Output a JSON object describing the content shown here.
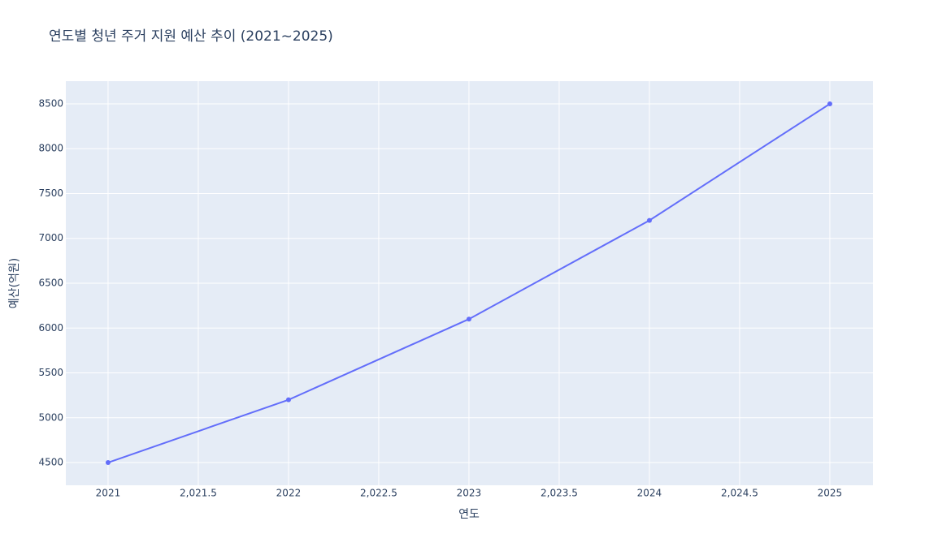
{
  "chart_data": {
    "type": "line",
    "title": "연도별 청년 주거 지원 예산 추이 (2021~2025)",
    "x_label": "연도",
    "y_label": "예산(억원)",
    "x": [
      2021,
      2022,
      2023,
      2024,
      2025
    ],
    "series": [
      {
        "name": "예산",
        "color": "#636efa",
        "values": [
          4500,
          5200,
          6100,
          7200,
          8500
        ]
      }
    ],
    "xlim": [
      2020.766,
      2025.239
    ],
    "xticks": [
      2021,
      {
        "value": 2021.5,
        "label": "2,021.5"
      },
      2022,
      {
        "value": 2022.5,
        "label": "2,022.5"
      },
      2023,
      {
        "value": 2023.5,
        "label": "2,023.5"
      },
      2024,
      {
        "value": 2024.5,
        "label": "2,024.5"
      },
      2025
    ],
    "ylim": [
      4247,
      8753
    ],
    "yticks": [
      4500,
      5000,
      5500,
      6000,
      6500,
      7000,
      7500,
      8000,
      8500
    ],
    "grid": true,
    "markers": true
  }
}
